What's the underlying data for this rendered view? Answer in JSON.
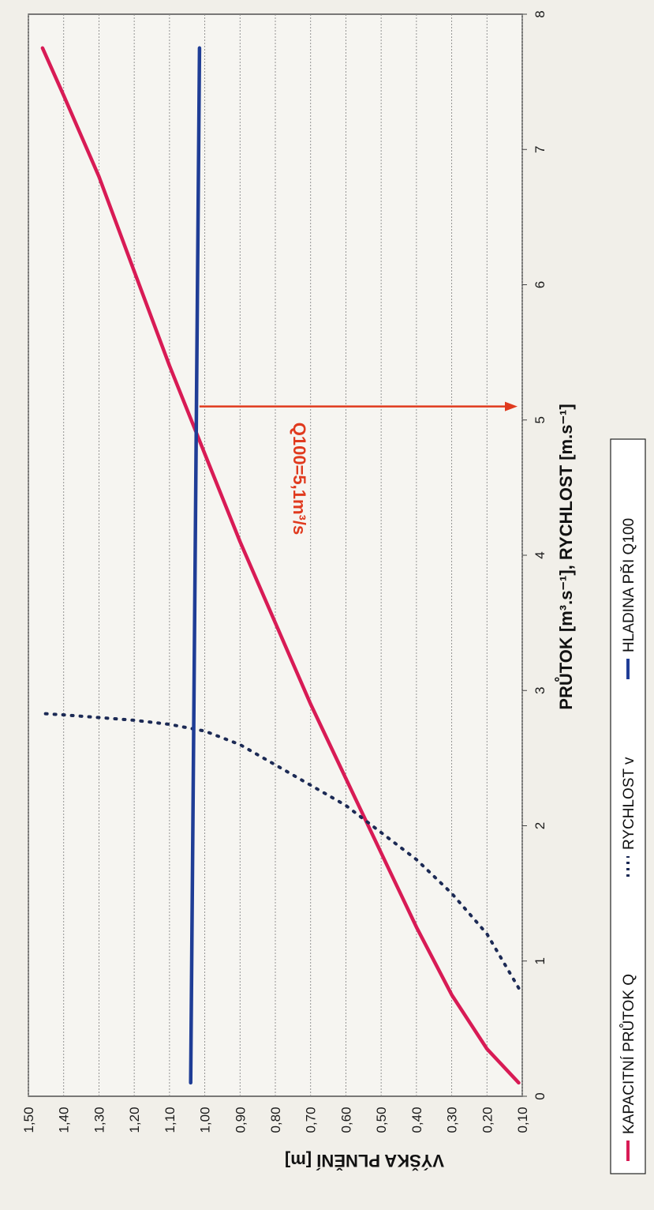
{
  "chart_data": {
    "type": "line",
    "xlabel": "PRŮTOK [m³.s⁻¹], RYCHLOST [m.s⁻¹]",
    "ylabel": "VÝŠKA PLNĚNÍ [m]",
    "xlim": [
      0,
      8
    ],
    "ylim": [
      0.1,
      1.5
    ],
    "x_ticks": [
      "0",
      "1",
      "2",
      "3",
      "4",
      "5",
      "6",
      "7",
      "8"
    ],
    "y_ticks": [
      "0,10",
      "0,20",
      "0,30",
      "0,40",
      "0,50",
      "0,60",
      "0,70",
      "0,80",
      "0,90",
      "1,00",
      "1,10",
      "1,20",
      "1,30",
      "1,40",
      "1,50"
    ],
    "grid": true,
    "legend_position": "bottom",
    "series": [
      {
        "name": "KAPACITNÍ PRŮTOK Q",
        "style": "solid",
        "color": "#d81b55",
        "points": [
          [
            0.1,
            0.11
          ],
          [
            0.35,
            0.2
          ],
          [
            0.75,
            0.3
          ],
          [
            1.25,
            0.4
          ],
          [
            1.8,
            0.5
          ],
          [
            2.35,
            0.6
          ],
          [
            2.9,
            0.7
          ],
          [
            3.5,
            0.8
          ],
          [
            4.1,
            0.9
          ],
          [
            4.75,
            1.0
          ],
          [
            5.4,
            1.1
          ],
          [
            6.1,
            1.2
          ],
          [
            6.8,
            1.3
          ],
          [
            7.4,
            1.4
          ],
          [
            7.75,
            1.46
          ]
        ]
      },
      {
        "name": "RYCHLOST v",
        "style": "dotted",
        "color": "#1c2a55",
        "points": [
          [
            0.8,
            0.11
          ],
          [
            1.2,
            0.2
          ],
          [
            1.5,
            0.3
          ],
          [
            1.75,
            0.4
          ],
          [
            1.95,
            0.5
          ],
          [
            2.15,
            0.6
          ],
          [
            2.3,
            0.7
          ],
          [
            2.45,
            0.8
          ],
          [
            2.6,
            0.9
          ],
          [
            2.7,
            1.0
          ],
          [
            2.75,
            1.1
          ],
          [
            2.78,
            1.2
          ],
          [
            2.8,
            1.3
          ],
          [
            2.82,
            1.4
          ],
          [
            2.83,
            1.46
          ]
        ]
      },
      {
        "name": "HLADINA PŘI Q100",
        "style": "solid",
        "color": "#1f3d96",
        "points": [
          [
            0.1,
            1.04
          ],
          [
            7.75,
            1.015
          ]
        ]
      }
    ],
    "annotation": {
      "label": "Q100=5,1m³/s",
      "x": 5.1,
      "y_from": 1.015,
      "y_to": 0.1,
      "color": "#e03a1e"
    }
  }
}
